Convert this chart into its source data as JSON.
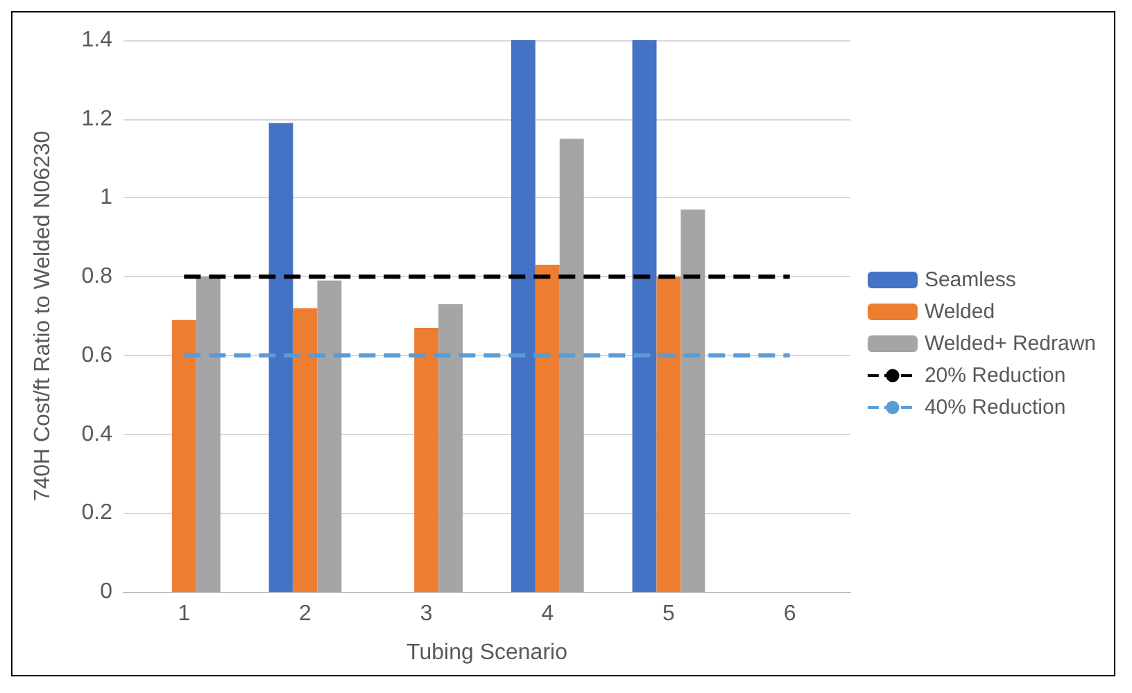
{
  "chart_data": {
    "type": "bar",
    "xlabel": "Tubing Scenario",
    "ylabel": "740H Cost/ft Ratio to Welded N06230",
    "categories": [
      "1",
      "2",
      "3",
      "4",
      "5",
      "6"
    ],
    "series": [
      {
        "name": "Seamless",
        "color": "#4472c4",
        "values": [
          null,
          1.19,
          null,
          1.4,
          1.4,
          null
        ]
      },
      {
        "name": "Welded",
        "color": "#ed7d31",
        "values": [
          0.69,
          0.72,
          0.67,
          0.83,
          0.8,
          null
        ]
      },
      {
        "name": "Welded+ Redrawn",
        "color": "#a5a5a5",
        "values": [
          0.8,
          0.79,
          0.73,
          1.15,
          0.97,
          null
        ]
      },
      {
        "name": "20% Reduction",
        "type": "line",
        "line_style": "dashed",
        "color": "#000000",
        "values": [
          0.8,
          0.8,
          0.8,
          0.8,
          0.8,
          0.8
        ]
      },
      {
        "name": "40% Reduction",
        "type": "line",
        "line_style": "dashed",
        "color": "#5b9bd5",
        "values": [
          0.6,
          0.6,
          0.6,
          0.6,
          0.6,
          0.6
        ]
      }
    ],
    "ylim": [
      0,
      1.4
    ],
    "yticks": [
      0,
      0.2,
      0.4,
      0.6,
      0.8,
      1,
      1.2,
      1.4
    ],
    "grid": "y",
    "legend": "right",
    "marker": "none"
  }
}
